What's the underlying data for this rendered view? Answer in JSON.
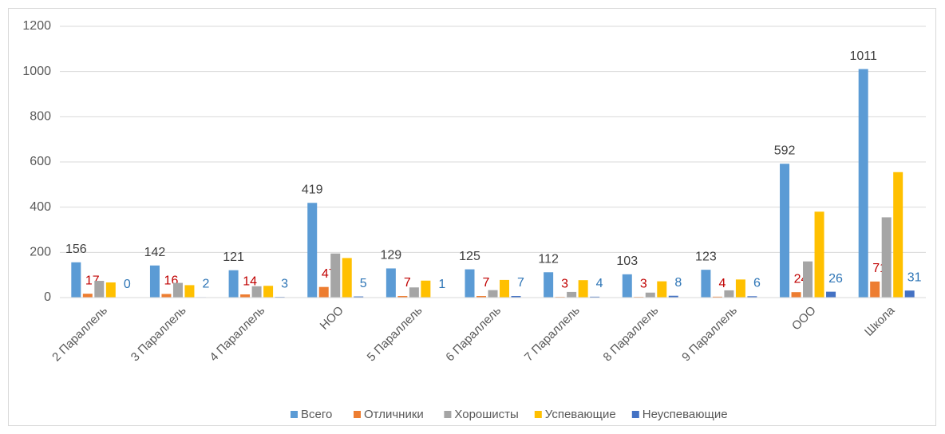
{
  "chart_data": {
    "type": "bar",
    "categories": [
      "2 Параллель",
      "3 Параллель",
      "4 Параллель",
      "НОО",
      "5 Параллель",
      "6 Параллель",
      "7 Параллель",
      "8 Параллель",
      "9 Параллель",
      "ООО",
      "Школа"
    ],
    "series": [
      {
        "name": "Всего",
        "color": "#5b9bd5",
        "label_color": "#404040",
        "values": [
          156,
          142,
          121,
          419,
          129,
          125,
          112,
          103,
          123,
          592,
          1011
        ]
      },
      {
        "name": "Отличники",
        "color": "#ed7d31",
        "label_color": "#c00000",
        "values": [
          17,
          16,
          14,
          47,
          7,
          7,
          3,
          3,
          4,
          24,
          71
        ]
      },
      {
        "name": "Хорошисты",
        "color": "#a5a5a5",
        "values": [
          74,
          65,
          50,
          195,
          45,
          33,
          25,
          22,
          32,
          160,
          355
        ]
      },
      {
        "name": "Успевающие",
        "color": "#ffc000",
        "values": [
          67,
          55,
          52,
          175,
          75,
          78,
          77,
          72,
          80,
          380,
          555
        ]
      },
      {
        "name": "Неуспевающие",
        "color": "#4472c4",
        "label_color": "#2e75b6",
        "values": [
          0,
          2,
          3,
          5,
          1,
          7,
          4,
          8,
          6,
          26,
          31
        ]
      }
    ],
    "ylim": [
      0,
      1200
    ],
    "yticks": [
      0,
      200,
      400,
      600,
      800,
      1000,
      1200
    ],
    "grid": true,
    "legend": "bottom"
  }
}
